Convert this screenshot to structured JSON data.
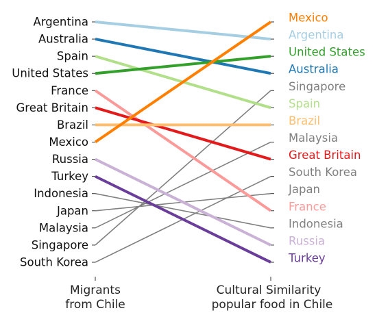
{
  "chart_data": {
    "type": "line",
    "chart_kind": "slope",
    "categories": [
      "Migrants\nfrom Chile",
      "Cultural Similarity\npopular food in Chile"
    ],
    "axis_labels": [
      "Migrants",
      "from Chile",
      "Cultural Similarity",
      "popular food in Chile"
    ],
    "left_order": [
      "Argentina",
      "Australia",
      "Spain",
      "United States",
      "France",
      "Great Britain",
      "Brazil",
      "Mexico",
      "Russia",
      "Turkey",
      "Indonesia",
      "Japan",
      "Malaysia",
      "Singapore",
      "South Korea"
    ],
    "right_order": [
      "Mexico",
      "Argentina",
      "United States",
      "Australia",
      "Singapore",
      "Spain",
      "Brazil",
      "Malaysia",
      "Great Britain",
      "South Korea",
      "Japan",
      "France",
      "Indonesia",
      "Russia",
      "Turkey"
    ],
    "grid": false,
    "legend": "none",
    "series": [
      {
        "name": "Argentina",
        "color": "#a6cee3",
        "highlight": true
      },
      {
        "name": "Australia",
        "color": "#1f78b4",
        "highlight": true
      },
      {
        "name": "Spain",
        "color": "#b2df8a",
        "highlight": true
      },
      {
        "name": "United States",
        "color": "#33a02c",
        "highlight": true
      },
      {
        "name": "France",
        "color": "#fb9a99",
        "highlight": true
      },
      {
        "name": "Great Britain",
        "color": "#e31a1c",
        "highlight": true
      },
      {
        "name": "Brazil",
        "color": "#fdbf6f",
        "highlight": true
      },
      {
        "name": "Mexico",
        "color": "#ff7f00",
        "highlight": true
      },
      {
        "name": "Russia",
        "color": "#cab2d6",
        "highlight": true
      },
      {
        "name": "Turkey",
        "color": "#6a3d9a",
        "highlight": true
      },
      {
        "name": "Indonesia",
        "color": "#808080",
        "highlight": false
      },
      {
        "name": "Japan",
        "color": "#808080",
        "highlight": false
      },
      {
        "name": "Malaysia",
        "color": "#808080",
        "highlight": false
      },
      {
        "name": "Singapore",
        "color": "#808080",
        "highlight": false
      },
      {
        "name": "South Korea",
        "color": "#808080",
        "highlight": false
      }
    ]
  }
}
